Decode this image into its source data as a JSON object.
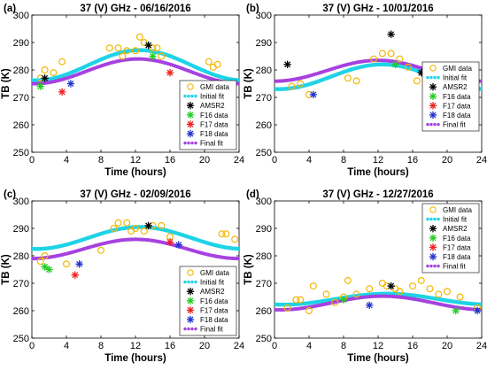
{
  "figure": {
    "axis_xlabel": "Time (hours)",
    "axis_ylabel": "TB (K)",
    "legend": [
      "GMI data",
      "Initial fit",
      "AMSR2",
      "F16 data",
      "F17 data",
      "F18 data",
      "Final fit"
    ],
    "colors": {
      "gmi": "#f2b705",
      "initial_fit": "#1fd3e6",
      "amsr2": "#000000",
      "f16": "#22cc22",
      "f17": "#ee2222",
      "f18": "#2233cc",
      "final_fit": "#a641e0"
    }
  },
  "chart_data": [
    {
      "type": "scatter",
      "panel": "(a)",
      "title": "37 (V) GHz - 06/16/2016",
      "xlabel": "Time (hours)",
      "ylabel": "TB (K)",
      "xlim": [
        0,
        24
      ],
      "ylim": [
        250,
        300
      ],
      "xticks": [
        0,
        4,
        8,
        12,
        16,
        20,
        24
      ],
      "yticks": [
        250,
        260,
        270,
        280,
        290,
        300
      ],
      "legend_position": "bottom-right",
      "initial_fit": {
        "mean": 281.7,
        "amp": 5.5,
        "peak_hour": 12.5
      },
      "final_fit": {
        "mean": 279.5,
        "amp": 4.5,
        "peak_hour": 12.3
      },
      "gmi": [
        [
          1,
          277
        ],
        [
          1.5,
          280
        ],
        [
          2.5,
          279
        ],
        [
          3.5,
          283
        ],
        [
          9,
          288
        ],
        [
          10,
          288
        ],
        [
          10.5,
          285
        ],
        [
          11,
          287
        ],
        [
          12,
          287
        ],
        [
          12.5,
          292
        ],
        [
          13,
          290
        ],
        [
          14,
          288
        ],
        [
          14.5,
          288
        ],
        [
          15,
          285
        ],
        [
          20.5,
          283
        ],
        [
          21,
          281
        ],
        [
          21.5,
          282
        ]
      ],
      "amsr2": [
        [
          1.5,
          277
        ],
        [
          13.5,
          289
        ]
      ],
      "f16": [
        [
          1,
          274
        ],
        [
          14,
          285
        ]
      ],
      "f17": [
        [
          3.5,
          272
        ],
        [
          16,
          279
        ]
      ],
      "f18": [
        [
          4.5,
          275
        ]
      ]
    },
    {
      "type": "scatter",
      "panel": "(b)",
      "title": "37 (V) GHz - 10/01/2016",
      "xlabel": "Time (hours)",
      "ylabel": "TB (K)",
      "xlim": [
        0,
        24
      ],
      "ylim": [
        250,
        300
      ],
      "xticks": [
        0,
        4,
        8,
        12,
        16,
        20,
        24
      ],
      "yticks": [
        250,
        260,
        270,
        280,
        290,
        300
      ],
      "legend_position": "right",
      "initial_fit": {
        "mean": 277.5,
        "amp": 4.5,
        "peak_hour": 12.5
      },
      "final_fit": {
        "mean": 279.7,
        "amp": 3.8,
        "peak_hour": 12.0
      },
      "gmi": [
        [
          2,
          274
        ],
        [
          3,
          275
        ],
        [
          4,
          271
        ],
        [
          8.5,
          277
        ],
        [
          9.5,
          276
        ],
        [
          11.5,
          284
        ],
        [
          12.5,
          286
        ],
        [
          13.5,
          286
        ],
        [
          14.5,
          284
        ],
        [
          15.5,
          281
        ],
        [
          16.5,
          276
        ],
        [
          19.5,
          275
        ]
      ],
      "amsr2": [
        [
          1.5,
          282
        ],
        [
          13.5,
          293
        ],
        [
          17,
          279
        ]
      ],
      "f16": [
        [
          14,
          282
        ]
      ],
      "f17": [],
      "f18": [
        [
          4.5,
          271
        ]
      ]
    },
    {
      "type": "scatter",
      "panel": "(c)",
      "title": "37 (V) GHz - 02/09/2016",
      "xlabel": "Time (hours)",
      "ylabel": "TB (K)",
      "xlim": [
        0,
        24
      ],
      "ylim": [
        250,
        300
      ],
      "xticks": [
        0,
        4,
        8,
        12,
        16,
        20,
        24
      ],
      "yticks": [
        250,
        260,
        270,
        280,
        290,
        300
      ],
      "legend_position": "bottom-right",
      "initial_fit": {
        "mean": 286.5,
        "amp": 4.0,
        "peak_hour": 12.5
      },
      "final_fit": {
        "mean": 282.5,
        "amp": 3.5,
        "peak_hour": 12.0
      },
      "gmi": [
        [
          1,
          278
        ],
        [
          1.5,
          280
        ],
        [
          4,
          277
        ],
        [
          8,
          282
        ],
        [
          9.5,
          290
        ],
        [
          10,
          292
        ],
        [
          11,
          292
        ],
        [
          11.5,
          289
        ],
        [
          12,
          290
        ],
        [
          13,
          289
        ],
        [
          14,
          291
        ],
        [
          15,
          291
        ],
        [
          16,
          287
        ],
        [
          22,
          288
        ],
        [
          22.5,
          288
        ],
        [
          23.5,
          286
        ]
      ],
      "amsr2": [
        [
          13.5,
          291
        ]
      ],
      "f16": [
        [
          1.5,
          276
        ],
        [
          2,
          275
        ]
      ],
      "f17": [
        [
          5,
          273
        ],
        [
          16,
          285
        ]
      ],
      "f18": [
        [
          5.5,
          277
        ],
        [
          17,
          284
        ]
      ]
    },
    {
      "type": "scatter",
      "panel": "(d)",
      "title": "37 (V) GHz - 12/27/2016",
      "xlabel": "Time (hours)",
      "ylabel": "TB (K)",
      "xlim": [
        0,
        24
      ],
      "ylim": [
        250,
        300
      ],
      "xticks": [
        0,
        4,
        8,
        12,
        16,
        20,
        24
      ],
      "yticks": [
        250,
        260,
        270,
        280,
        290,
        300
      ],
      "legend_position": "top-right",
      "initial_fit": {
        "mean": 264.2,
        "amp": 2.0,
        "peak_hour": 13.0
      },
      "final_fit": {
        "mean": 262.8,
        "amp": 2.5,
        "peak_hour": 12.5
      },
      "gmi": [
        [
          1.5,
          261
        ],
        [
          2.5,
          264
        ],
        [
          3,
          264
        ],
        [
          4,
          260
        ],
        [
          4.5,
          269
        ],
        [
          6,
          266
        ],
        [
          7,
          263
        ],
        [
          8,
          265
        ],
        [
          8.5,
          271
        ],
        [
          9.5,
          266
        ],
        [
          11,
          268
        ],
        [
          12.5,
          270
        ],
        [
          13,
          269
        ],
        [
          14,
          268
        ],
        [
          14.5,
          267
        ],
        [
          16,
          269
        ],
        [
          17,
          271
        ],
        [
          18,
          268
        ],
        [
          19,
          266
        ],
        [
          20,
          267
        ],
        [
          21.5,
          265
        ],
        [
          23.5,
          261
        ]
      ],
      "amsr2": [
        [
          13.5,
          269
        ]
      ],
      "f16": [
        [
          8,
          264
        ],
        [
          21,
          260
        ]
      ],
      "f17": [],
      "f18": [
        [
          11,
          262
        ],
        [
          23.5,
          260
        ]
      ]
    }
  ]
}
